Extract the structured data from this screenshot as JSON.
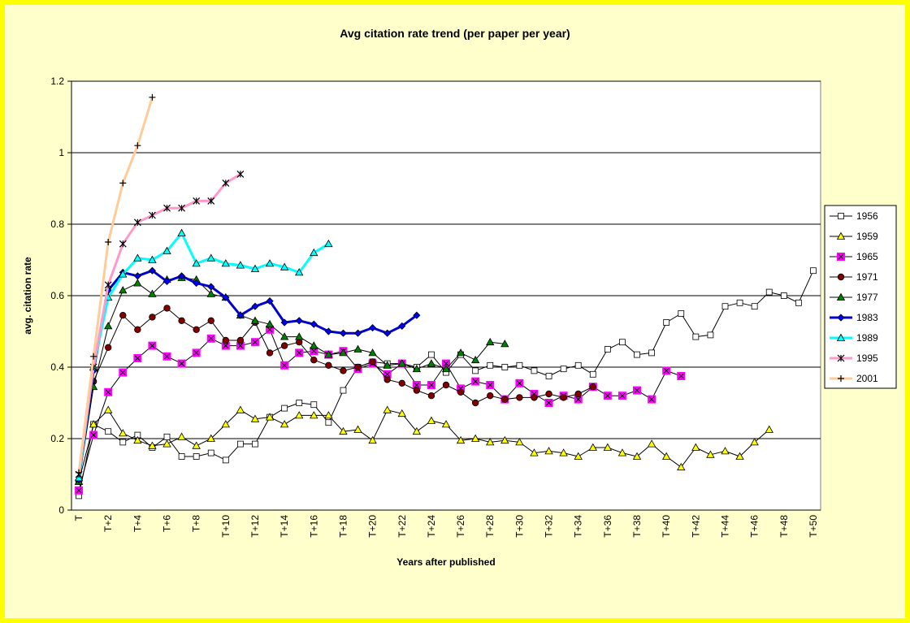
{
  "chart_data": {
    "type": "line",
    "title": "Avg citation rate trend (per paper per year)",
    "x_label": "Years after published",
    "y_label": "avg. citation rate",
    "categories": [
      "T",
      null,
      "T+2",
      null,
      "T+4",
      null,
      "T+6",
      null,
      "T+8",
      null,
      "T+10",
      null,
      "T+12",
      null,
      "T+14",
      null,
      "T+16",
      null,
      "T+18",
      null,
      "T+20",
      null,
      "T+22",
      null,
      "T+24",
      null,
      "T+26",
      null,
      "T+28",
      null,
      "T+30",
      null,
      "T+32",
      null,
      "T+34",
      null,
      "T+36",
      null,
      "T+38",
      null,
      "T+40",
      null,
      "T+42",
      null,
      "T+44",
      null,
      "T+46",
      null,
      "T+48",
      null,
      "T+50"
    ],
    "ylim": [
      0,
      1.2
    ],
    "yticks": [
      0,
      0.2,
      0.4,
      0.6,
      0.8,
      1,
      1.2
    ],
    "grid": true,
    "legend": "right",
    "series": [
      {
        "name": "1956",
        "color": "#ffffff",
        "line_color": "#000000",
        "line_width": 1,
        "marker": "square",
        "values": [
          0.04,
          0.24,
          0.22,
          0.19,
          0.21,
          0.175,
          0.205,
          0.15,
          0.15,
          0.16,
          0.14,
          0.185,
          0.185,
          0.26,
          0.285,
          0.3,
          0.295,
          0.245,
          0.335,
          0.4,
          0.415,
          0.41,
          0.41,
          0.4,
          0.435,
          0.385,
          0.435,
          0.39,
          0.405,
          0.4,
          0.405,
          0.39,
          0.375,
          0.395,
          0.405,
          0.38,
          0.45,
          0.47,
          0.435,
          0.44,
          0.525,
          0.55,
          0.485,
          0.49,
          0.57,
          0.58,
          0.57,
          0.61,
          0.6,
          0.58,
          0.67
        ]
      },
      {
        "name": "1959",
        "color": "#ffff00",
        "line_color": "#000000",
        "line_width": 1,
        "marker": "triangle",
        "values": [
          0.08,
          0.24,
          0.28,
          0.215,
          0.195,
          0.18,
          0.185,
          0.205,
          0.18,
          0.2,
          0.24,
          0.28,
          0.255,
          0.26,
          0.24,
          0.265,
          0.265,
          0.265,
          0.22,
          0.225,
          0.195,
          0.28,
          0.27,
          0.22,
          0.25,
          0.24,
          0.195,
          0.2,
          0.19,
          0.195,
          0.19,
          0.16,
          0.165,
          0.16,
          0.15,
          0.175,
          0.175,
          0.16,
          0.15,
          0.185,
          0.15,
          0.12,
          0.175,
          0.155,
          0.165,
          0.15,
          0.19,
          0.225,
          null,
          null,
          null
        ]
      },
      {
        "name": "1965",
        "color": "#ff00ff",
        "line_color": "#000000",
        "line_width": 1,
        "marker": "square-x",
        "values": [
          0.055,
          0.21,
          0.33,
          0.385,
          0.425,
          0.46,
          0.43,
          0.41,
          0.44,
          0.48,
          0.46,
          0.46,
          0.47,
          0.505,
          0.405,
          0.44,
          0.445,
          0.435,
          0.445,
          0.395,
          0.41,
          0.38,
          0.41,
          0.35,
          0.35,
          0.41,
          0.34,
          0.36,
          0.35,
          0.31,
          0.355,
          0.325,
          0.3,
          0.32,
          0.31,
          0.345,
          0.32,
          0.32,
          0.335,
          0.31,
          0.39,
          0.375,
          null,
          null,
          null,
          null,
          null,
          null,
          null,
          null,
          null
        ]
      },
      {
        "name": "1971",
        "color": "#800000",
        "line_color": "#000000",
        "line_width": 1,
        "marker": "circle",
        "values": [
          0.08,
          0.36,
          0.455,
          0.545,
          0.505,
          0.54,
          0.565,
          0.53,
          0.505,
          0.53,
          0.475,
          0.475,
          0.525,
          0.44,
          0.46,
          0.47,
          0.42,
          0.405,
          0.39,
          0.4,
          0.415,
          0.365,
          0.355,
          0.335,
          0.32,
          0.35,
          0.33,
          0.3,
          0.32,
          0.31,
          0.315,
          0.315,
          0.325,
          0.315,
          0.325,
          0.345,
          null,
          null,
          null,
          null,
          null,
          null,
          null,
          null,
          null,
          null,
          null,
          null,
          null,
          null,
          null
        ]
      },
      {
        "name": "1977",
        "color": "#008000",
        "line_color": "#000000",
        "line_width": 1,
        "marker": "triangle",
        "values": [
          0.08,
          0.345,
          0.515,
          0.615,
          0.635,
          0.605,
          0.645,
          0.65,
          0.645,
          0.605,
          0.595,
          0.545,
          0.53,
          0.52,
          0.485,
          0.485,
          0.46,
          0.435,
          0.44,
          0.45,
          0.44,
          0.405,
          0.41,
          0.395,
          0.41,
          0.395,
          0.44,
          0.42,
          0.47,
          0.465,
          null,
          null,
          null,
          null,
          null,
          null,
          null,
          null,
          null,
          null,
          null,
          null,
          null,
          null,
          null,
          null,
          null,
          null,
          null,
          null,
          null
        ]
      },
      {
        "name": "1983",
        "color": "#0000ff",
        "line_color": "#0000cc",
        "line_width": 3,
        "marker": "diamond",
        "values": [
          0.085,
          0.39,
          0.615,
          0.665,
          0.655,
          0.67,
          0.64,
          0.655,
          0.635,
          0.625,
          0.595,
          0.545,
          0.57,
          0.585,
          0.525,
          0.53,
          0.52,
          0.5,
          0.495,
          0.495,
          0.51,
          0.495,
          0.515,
          0.545,
          null,
          null,
          null,
          null,
          null,
          null,
          null,
          null,
          null,
          null,
          null,
          null,
          null,
          null,
          null,
          null,
          null,
          null,
          null,
          null,
          null,
          null,
          null,
          null,
          null,
          null,
          null
        ]
      },
      {
        "name": "1989",
        "color": "#00ffff",
        "line_color": "#00ffff",
        "line_width": 3,
        "marker": "triangle",
        "values": [
          0.09,
          0.4,
          0.595,
          0.66,
          0.705,
          0.7,
          0.725,
          0.775,
          0.69,
          0.705,
          0.69,
          0.685,
          0.675,
          0.69,
          0.68,
          0.665,
          0.72,
          0.745,
          null,
          null,
          null,
          null,
          null,
          null,
          null,
          null,
          null,
          null,
          null,
          null,
          null,
          null,
          null,
          null,
          null,
          null,
          null,
          null,
          null,
          null,
          null,
          null,
          null,
          null,
          null,
          null,
          null,
          null,
          null,
          null,
          null
        ]
      },
      {
        "name": "1995",
        "color": "#000000",
        "line_color": "#ff99cc",
        "line_width": 3,
        "marker": "star",
        "values": [
          0.1,
          0.4,
          0.63,
          0.745,
          0.805,
          0.825,
          0.845,
          0.845,
          0.865,
          0.865,
          0.915,
          0.94,
          null,
          null,
          null,
          null,
          null,
          null,
          null,
          null,
          null,
          null,
          null,
          null,
          null,
          null,
          null,
          null,
          null,
          null,
          null,
          null,
          null,
          null,
          null,
          null,
          null,
          null,
          null,
          null,
          null,
          null,
          null,
          null,
          null,
          null,
          null,
          null,
          null,
          null,
          null
        ]
      },
      {
        "name": "2001",
        "color": "#000000",
        "line_color": "#ffcc99",
        "line_width": 3,
        "marker": "plus",
        "values": [
          0.105,
          0.43,
          0.75,
          0.915,
          1.02,
          1.155,
          null,
          null,
          null,
          null,
          null,
          null,
          null,
          null,
          null,
          null,
          null,
          null,
          null,
          null,
          null,
          null,
          null,
          null,
          null,
          null,
          null,
          null,
          null,
          null,
          null,
          null,
          null,
          null,
          null,
          null,
          null,
          null,
          null,
          null,
          null,
          null,
          null,
          null,
          null,
          null,
          null,
          null,
          null,
          null,
          null
        ]
      }
    ]
  }
}
